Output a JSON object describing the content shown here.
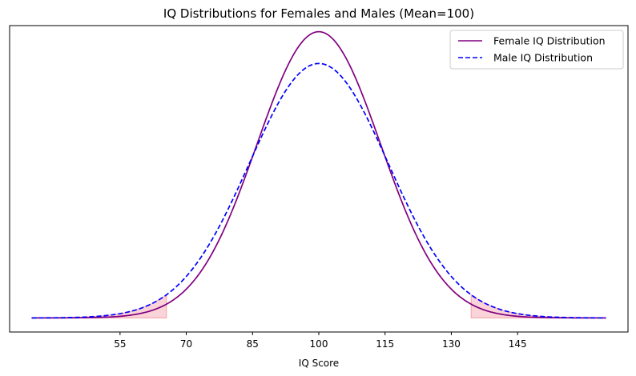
{
  "chart_data": {
    "type": "line",
    "title": "IQ Distributions for Females and Males (Mean=100)",
    "xlabel": "IQ Score",
    "ylabel": "",
    "xlim": [
      30,
      170
    ],
    "ylim": [
      -0.0014,
      0.0291
    ],
    "xticks": [
      55,
      70,
      85,
      100,
      115,
      130,
      145
    ],
    "yticks_visible": false,
    "grid": false,
    "legend_position": "top-right",
    "series": [
      {
        "name": "Female IQ Distribution",
        "distribution": "normal",
        "mean": 100,
        "sd": 14,
        "color": "#800080",
        "style": "solid"
      },
      {
        "name": "Male IQ Distribution",
        "distribution": "normal",
        "mean": 100,
        "sd": 15.75,
        "color": "#0000ff",
        "style": "dashed"
      }
    ],
    "shaded_regions": [
      {
        "x_range": [
          35,
          65.5
        ],
        "color": "#f4a0a8"
      },
      {
        "x_range": [
          134.5,
          165
        ],
        "color": "#f4a0a8"
      }
    ],
    "x_range": [
      35,
      165
    ]
  }
}
